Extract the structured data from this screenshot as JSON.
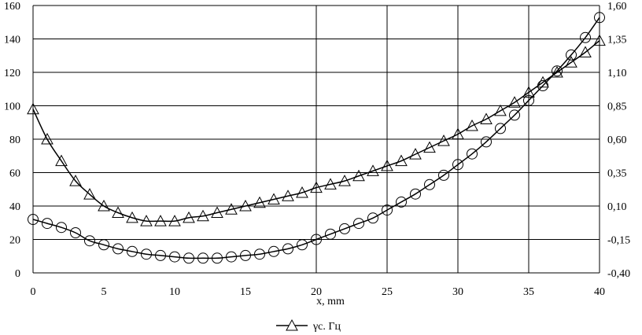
{
  "chart_data": {
    "type": "line",
    "xlabel": "x, mm",
    "x_ticks": [
      "0",
      "5",
      "10",
      "15",
      "20",
      "25",
      "30",
      "35",
      "40"
    ],
    "xlim": [
      0,
      40
    ],
    "y_left_ticks": [
      "0",
      "20",
      "40",
      "60",
      "80",
      "100",
      "120",
      "140",
      "160"
    ],
    "ylim_left": [
      0,
      160
    ],
    "y_right_ticks": [
      "-0,40",
      "-0,15",
      "0,10",
      "0,35",
      "0,60",
      "0,85",
      "1,10",
      "1,35",
      "1,60"
    ],
    "ylim_right": [
      -0.4,
      1.6
    ],
    "grid": "vertical lines at x ticks 20-40, horizontal lines at every y tick",
    "legend_position": "bottom-left",
    "series": [
      {
        "name": "γс. Гц",
        "marker": "triangle",
        "axis": "left",
        "x": [
          0,
          1,
          2,
          3,
          4,
          5,
          6,
          7,
          8,
          9,
          10,
          11,
          12,
          13,
          14,
          15,
          16,
          17,
          18,
          19,
          20,
          21,
          22,
          23,
          24,
          25,
          26,
          27,
          28,
          29,
          30,
          31,
          32,
          33,
          34,
          35,
          36,
          37,
          38,
          39,
          40
        ],
        "values": [
          98,
          80,
          67,
          55,
          47,
          40,
          36,
          33,
          31,
          31,
          31,
          33,
          34,
          36,
          38,
          40,
          42,
          44,
          46,
          48,
          51,
          53,
          55,
          58,
          61,
          64,
          67,
          71,
          75,
          79,
          83,
          88,
          92,
          97,
          102,
          108,
          114,
          120,
          126,
          132,
          139
        ]
      },
      {
        "marker": "circle",
        "axis": "right",
        "x": [
          0,
          1,
          2,
          3,
          4,
          5,
          6,
          7,
          8,
          9,
          10,
          11,
          12,
          13,
          14,
          15,
          16,
          17,
          18,
          19,
          20,
          21,
          22,
          23,
          24,
          25,
          26,
          27,
          28,
          29,
          30,
          31,
          32,
          33,
          34,
          35,
          36,
          37,
          38,
          39,
          40
        ],
        "values": [
          0.0,
          -0.03,
          -0.06,
          -0.1,
          -0.16,
          -0.19,
          -0.22,
          -0.24,
          -0.26,
          -0.27,
          -0.28,
          -0.29,
          -0.29,
          -0.29,
          -0.28,
          -0.27,
          -0.26,
          -0.24,
          -0.22,
          -0.19,
          -0.15,
          -0.11,
          -0.07,
          -0.03,
          0.01,
          0.07,
          0.13,
          0.19,
          0.26,
          0.33,
          0.41,
          0.49,
          0.58,
          0.68,
          0.78,
          0.89,
          1.0,
          1.11,
          1.23,
          1.36,
          1.51
        ]
      }
    ]
  }
}
